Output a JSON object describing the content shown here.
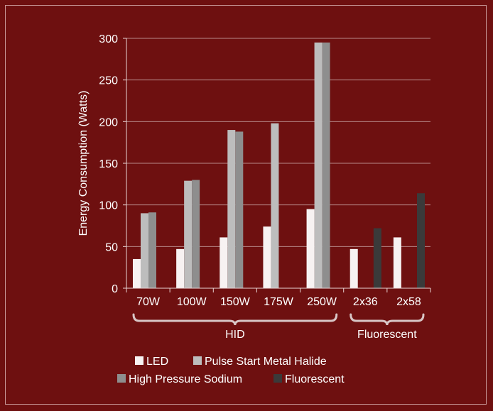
{
  "chart_data": {
    "type": "bar",
    "categories": [
      "70W",
      "100W",
      "150W",
      "175W",
      "250W",
      "2x36",
      "2x58"
    ],
    "groups": [
      {
        "label": "HID",
        "categories": [
          "70W",
          "100W",
          "150W",
          "175W",
          "250W"
        ]
      },
      {
        "label": "Fluorescent",
        "categories": [
          "2x36",
          "2x58"
        ]
      }
    ],
    "series": [
      {
        "name": "LED",
        "color": "#f7f2f2",
        "values": [
          35,
          47,
          61,
          74,
          95,
          47,
          61
        ]
      },
      {
        "name": "Pulse Start Metal Halide",
        "color": "#bdbdbd",
        "values": [
          90,
          129,
          190,
          198,
          295,
          null,
          null
        ]
      },
      {
        "name": "High Pressure Sodium",
        "color": "#8e8e8e",
        "values": [
          91,
          130,
          188,
          null,
          295,
          null,
          null
        ]
      },
      {
        "name": "Fluorescent",
        "color": "#3a3a3a",
        "values": [
          null,
          null,
          null,
          null,
          null,
          72,
          114
        ]
      }
    ],
    "ylabel": "Energy Consumption (Watts)",
    "xlabel": "",
    "ylim": [
      0,
      300
    ],
    "yticks": [
      0,
      50,
      100,
      150,
      200,
      250,
      300
    ],
    "grid": true,
    "legend": "bottom"
  }
}
